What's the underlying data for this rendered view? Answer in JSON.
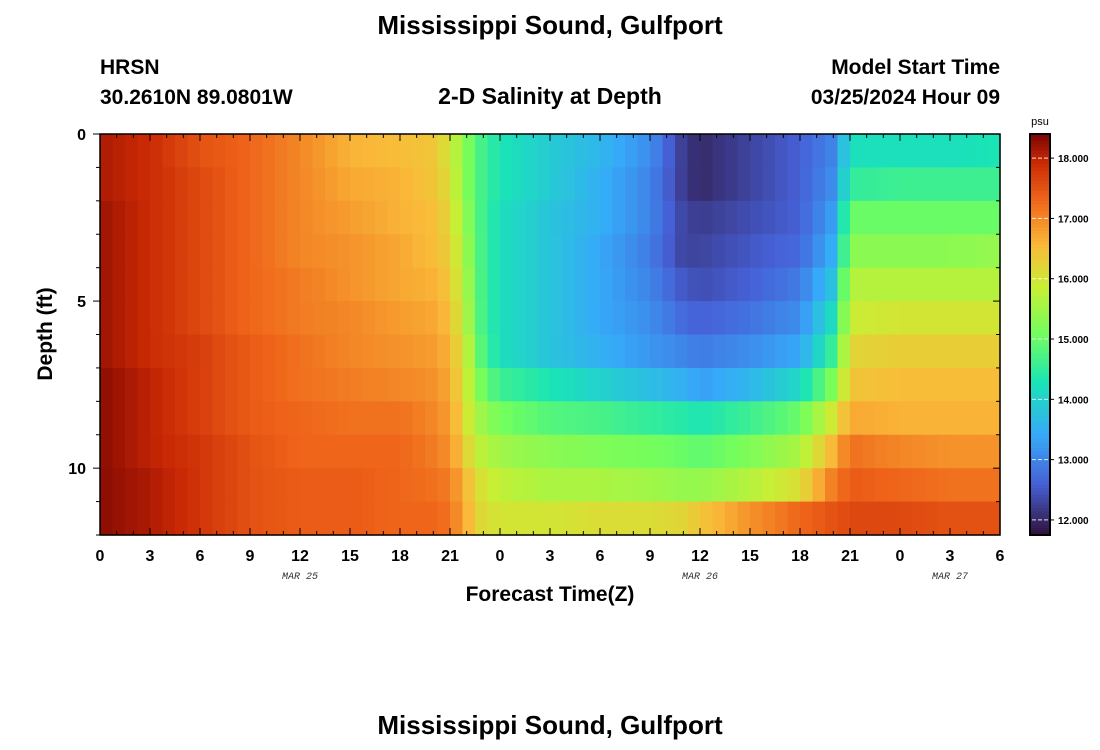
{
  "header": {
    "title": "Mississippi Sound, Gulfport",
    "station_code": "HRSN",
    "coordinates": "30.2610N  89.0801W",
    "plot_title": "2-D Salinity at Depth",
    "model_start_label": "Model Start Time",
    "model_start_value": "03/25/2024 Hour 09"
  },
  "footer": {
    "title": "Mississippi Sound, Gulfport"
  },
  "chart_data": {
    "type": "heatmap",
    "title": "2-D Salinity at Depth",
    "xlabel": "Forecast Time(Z)",
    "ylabel": "Depth (ft)",
    "x_ticks": [
      "0",
      "3",
      "6",
      "9",
      "12",
      "15",
      "18",
      "21",
      "0",
      "3",
      "6",
      "9",
      "12",
      "15",
      "18",
      "21",
      "0",
      "3",
      "6"
    ],
    "date_labels": [
      {
        "label": "MAR 25",
        "at_hour": 12
      },
      {
        "label": "MAR 26",
        "at_hour": 36
      },
      {
        "label": "MAR 27",
        "at_hour": 51
      }
    ],
    "xlim_hours": [
      0,
      54
    ],
    "y_ticks": [
      "0",
      "5",
      "10"
    ],
    "ylim_ft": [
      0,
      12
    ],
    "invert_y": true,
    "colorbar": {
      "unit": "psu",
      "range": [
        11.75,
        18.4
      ],
      "ticks": [
        "18.000",
        "17.000",
        "16.000",
        "15.000",
        "14.000",
        "13.000",
        "12.000"
      ],
      "tick_values": [
        18,
        17,
        16,
        15,
        14,
        13,
        12
      ]
    },
    "depth_levels_ft": [
      0.5,
      1.5,
      2.5,
      3.5,
      4.5,
      5.5,
      6.5,
      7.5,
      8.5,
      9.5,
      10.5,
      11.5
    ],
    "hours": [
      0,
      3,
      6,
      9,
      12,
      15,
      18,
      20,
      21,
      22,
      23,
      24,
      27,
      30,
      33,
      35,
      36,
      39,
      42,
      44,
      45,
      48,
      51,
      54
    ],
    "salinity_psu": [
      [
        18.1,
        17.9,
        17.5,
        17.3,
        17.0,
        16.6,
        16.5,
        16.4,
        16.0,
        15.2,
        14.6,
        14.3,
        13.9,
        13.6,
        13.1,
        12.2,
        12.0,
        12.3,
        12.6,
        13.0,
        14.2,
        14.2,
        14.2,
        14.3
      ],
      [
        18.1,
        17.9,
        17.6,
        17.3,
        17.0,
        16.7,
        16.6,
        16.4,
        16.1,
        15.2,
        14.6,
        14.3,
        13.9,
        13.5,
        13.0,
        12.2,
        12.0,
        12.3,
        12.6,
        13.1,
        14.5,
        14.6,
        14.6,
        14.6
      ],
      [
        18.2,
        17.9,
        17.6,
        17.3,
        17.0,
        16.8,
        16.6,
        16.5,
        16.2,
        15.3,
        14.6,
        14.2,
        13.8,
        13.5,
        13.0,
        12.3,
        12.2,
        12.4,
        12.6,
        13.3,
        15.0,
        15.0,
        15.0,
        15.0
      ],
      [
        18.2,
        17.9,
        17.6,
        17.3,
        17.0,
        16.9,
        16.7,
        16.5,
        16.3,
        15.4,
        14.6,
        14.2,
        13.8,
        13.4,
        12.9,
        12.3,
        12.3,
        12.5,
        12.7,
        13.5,
        15.3,
        15.3,
        15.3,
        15.4
      ],
      [
        18.2,
        17.9,
        17.6,
        17.3,
        17.1,
        16.9,
        16.7,
        16.6,
        16.4,
        15.5,
        14.6,
        14.2,
        13.8,
        13.4,
        13.0,
        12.5,
        12.4,
        12.6,
        12.9,
        13.8,
        15.7,
        15.7,
        15.7,
        15.7
      ],
      [
        18.2,
        17.9,
        17.6,
        17.3,
        17.1,
        17.0,
        16.8,
        16.7,
        16.5,
        15.6,
        14.6,
        14.2,
        13.8,
        13.4,
        13.1,
        12.7,
        12.6,
        12.8,
        13.1,
        14.2,
        15.9,
        16.0,
        16.0,
        16.0
      ],
      [
        18.2,
        17.9,
        17.7,
        17.4,
        17.2,
        17.0,
        16.9,
        16.8,
        16.6,
        15.8,
        14.7,
        14.2,
        13.8,
        13.5,
        13.2,
        13.0,
        12.9,
        13.1,
        13.4,
        14.6,
        16.2,
        16.3,
        16.3,
        16.3
      ],
      [
        18.3,
        18.0,
        17.7,
        17.4,
        17.2,
        17.1,
        17.0,
        16.9,
        16.7,
        15.9,
        15.0,
        14.6,
        14.3,
        14.0,
        13.7,
        13.5,
        13.3,
        13.6,
        14.1,
        15.2,
        16.4,
        16.5,
        16.5,
        16.5
      ],
      [
        18.3,
        18.0,
        17.7,
        17.4,
        17.3,
        17.2,
        17.2,
        17.0,
        16.8,
        16.0,
        15.4,
        15.1,
        14.8,
        14.7,
        14.5,
        14.4,
        14.3,
        14.6,
        15.0,
        16.0,
        16.7,
        16.6,
        16.6,
        16.6
      ],
      [
        18.3,
        18.0,
        17.8,
        17.5,
        17.3,
        17.3,
        17.3,
        17.1,
        16.9,
        16.2,
        15.7,
        15.5,
        15.3,
        15.2,
        15.1,
        15.0,
        14.9,
        15.2,
        15.6,
        16.6,
        17.2,
        17.0,
        16.9,
        16.9
      ],
      [
        18.3,
        18.1,
        17.8,
        17.5,
        17.4,
        17.4,
        17.3,
        17.2,
        17.1,
        16.5,
        16.0,
        15.8,
        15.6,
        15.6,
        15.5,
        15.4,
        15.4,
        15.7,
        16.1,
        17.1,
        17.4,
        17.3,
        17.2,
        17.2
      ],
      [
        18.3,
        18.1,
        17.8,
        17.5,
        17.4,
        17.4,
        17.3,
        17.3,
        17.2,
        16.6,
        16.1,
        16.0,
        16.0,
        16.1,
        16.1,
        16.2,
        16.4,
        16.9,
        17.3,
        17.5,
        17.6,
        17.6,
        17.5,
        17.5
      ]
    ]
  }
}
